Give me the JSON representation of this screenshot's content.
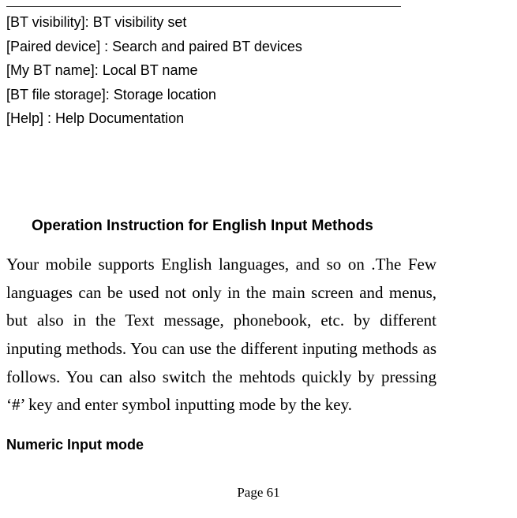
{
  "defs": [
    {
      "label": "[BT visibility]:",
      "text": "BT visibility set"
    },
    {
      "label": "[Paired device] :",
      "text": "Search and paired BT devices"
    },
    {
      "label": "[My BT name]:",
      "text": "Local BT name"
    },
    {
      "label": "[BT file storage]:",
      "text": "Storage location"
    },
    {
      "label": "[Help] :",
      "text": "Help Documentation"
    }
  ],
  "heading": "Operation Instruction for English Input Methods",
  "paragraph": "Your mobile supports English languages, and so on .The Few languages can be used not only in the main screen and menus, but also in the Text message, phonebook, etc. by different inputing methods. You can use the different inputing methods as follows. You can also switch the mehtods quickly by pressing ‘#’ key and enter symbol inputting mode by the key.",
  "subheading": "Numeric Input mode",
  "pageNumber": "Page 61"
}
